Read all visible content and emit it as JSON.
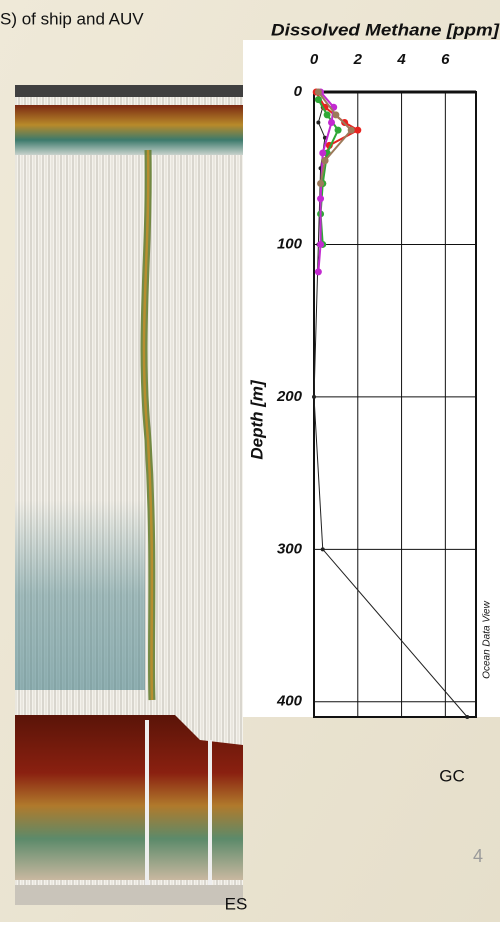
{
  "slide": {
    "header_fragment": "S) of ship and AUV",
    "left_label": "ES",
    "right_label": "GC",
    "page_number": "4"
  },
  "chart_data": {
    "type": "line",
    "title": "Dissolved Methane [ppm]",
    "x_label": "Dissolved Methane [ppm]",
    "y_label": "Depth [m]",
    "watermark": "Ocean Data View",
    "xlim": [
      0,
      7.4
    ],
    "xticks": [
      0,
      2,
      4,
      6
    ],
    "ylim": [
      0,
      410
    ],
    "yticks": [
      0,
      100,
      200,
      300,
      400
    ],
    "y_inverted": true,
    "grid": true,
    "series": [
      {
        "color": "#222222",
        "depth": [
          0,
          10,
          20,
          30,
          50,
          100,
          200,
          300,
          410
        ],
        "values": [
          0.1,
          0.4,
          0.2,
          0.5,
          0.3,
          0.2,
          0.0,
          0.4,
          7.0
        ]
      },
      {
        "color": "#e8221e",
        "depth": [
          0,
          10,
          20,
          25,
          35,
          45,
          60
        ],
        "values": [
          0.1,
          0.5,
          1.4,
          2.0,
          0.7,
          0.5,
          0.4
        ]
      },
      {
        "color": "#2fa836",
        "depth": [
          5,
          15,
          25,
          40,
          60,
          80,
          100
        ],
        "values": [
          0.2,
          0.6,
          1.1,
          0.6,
          0.4,
          0.3,
          0.4
        ]
      },
      {
        "color": "#c22ad0",
        "depth": [
          0,
          10,
          20,
          40,
          70,
          100,
          118
        ],
        "values": [
          0.3,
          0.9,
          0.8,
          0.4,
          0.3,
          0.3,
          0.2
        ]
      },
      {
        "color": "#9c7a5a",
        "depth": [
          0,
          15,
          25,
          45,
          60
        ],
        "values": [
          0.2,
          1.0,
          1.7,
          0.5,
          0.3
        ]
      }
    ]
  }
}
